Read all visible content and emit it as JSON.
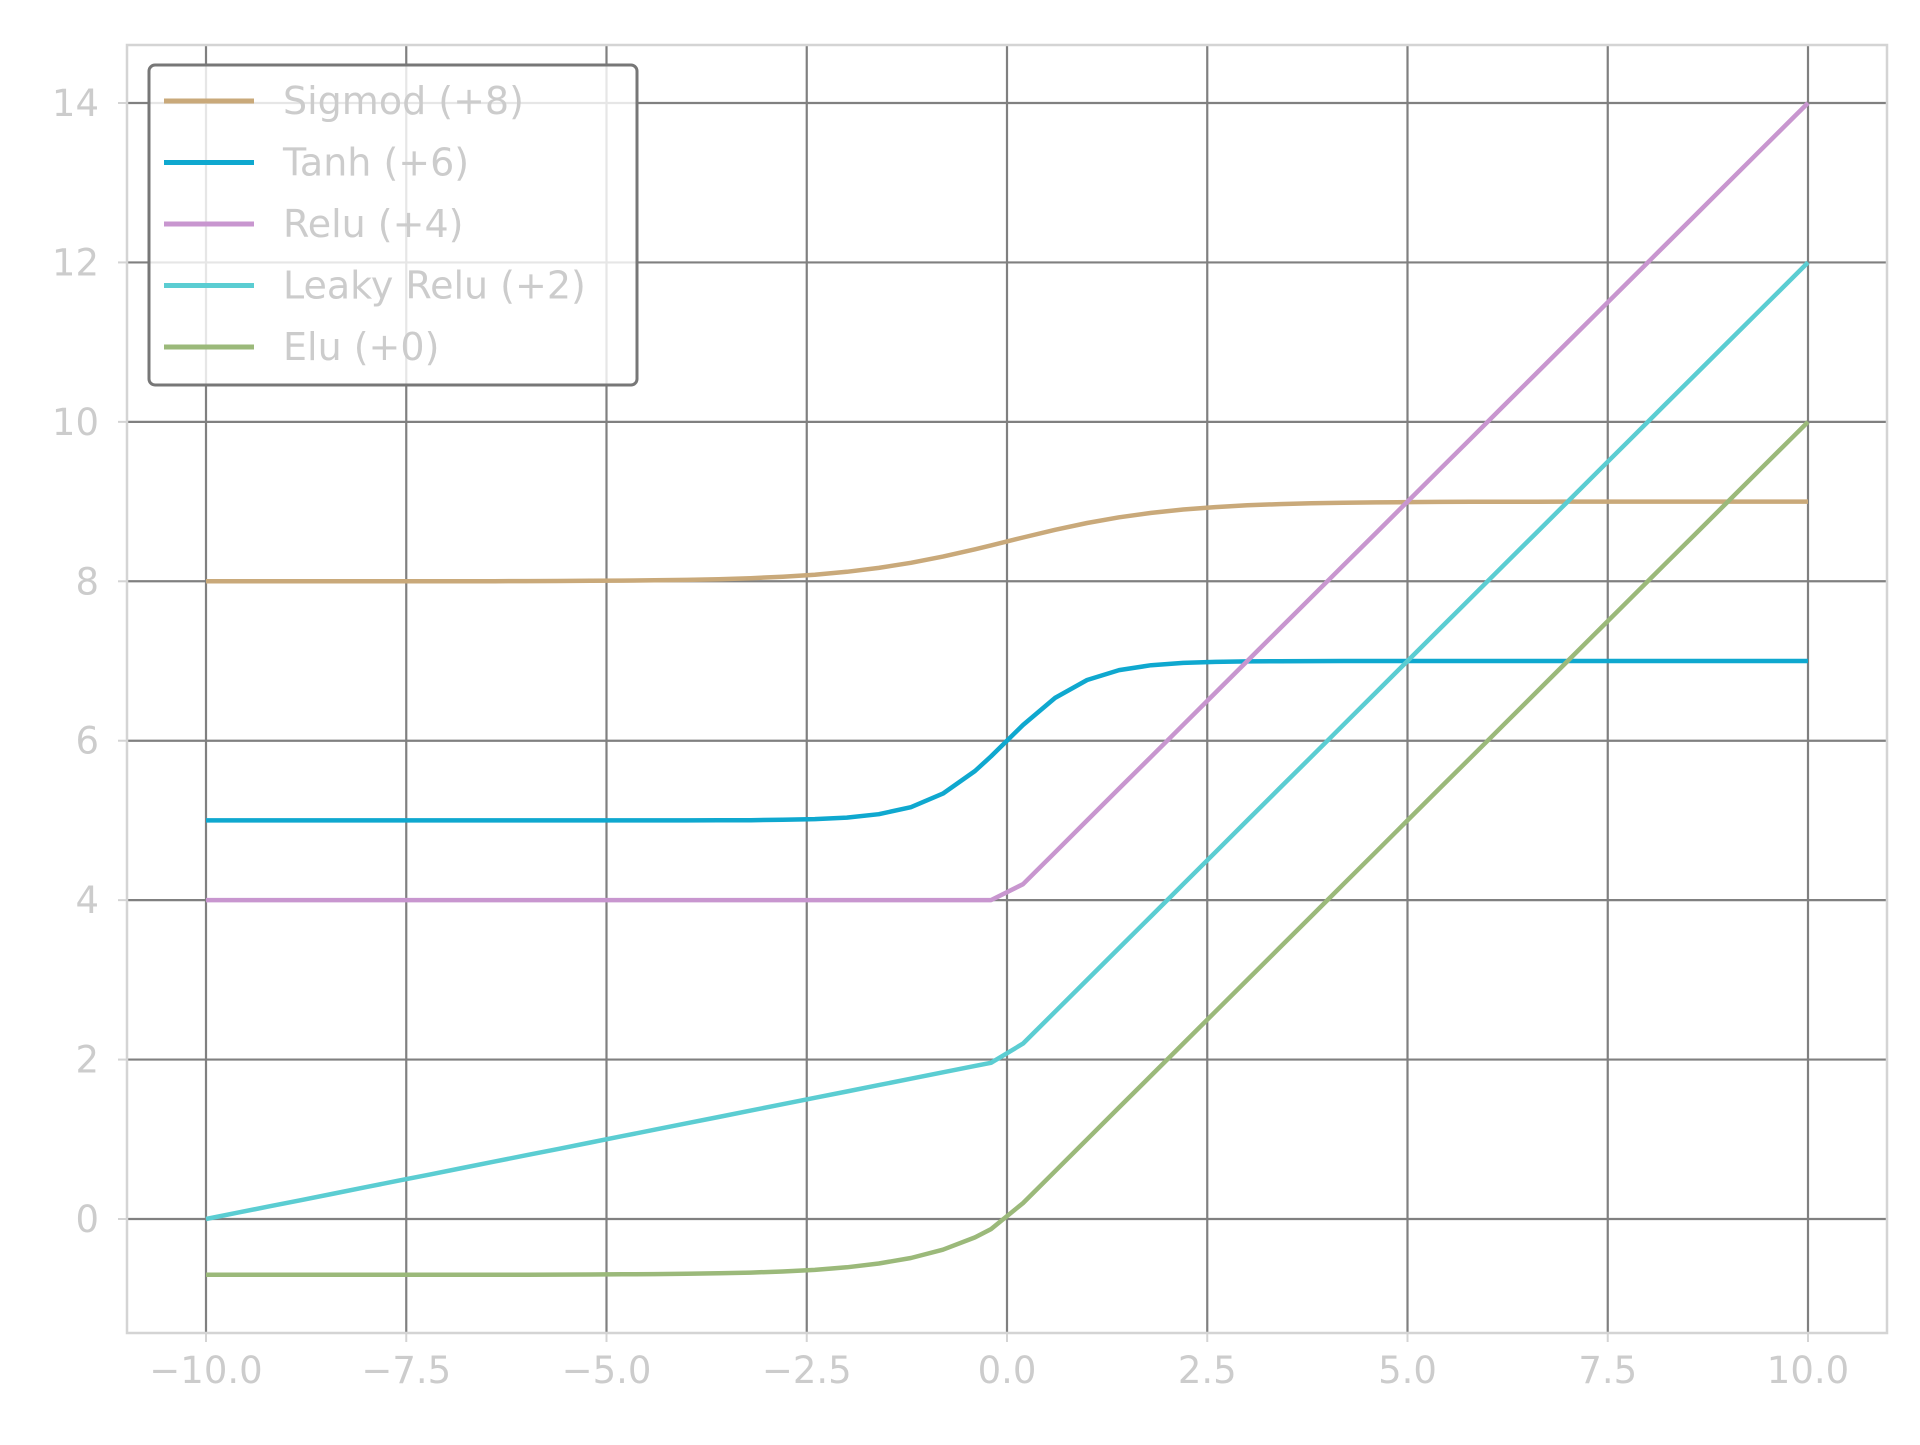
{
  "chart_data": {
    "type": "line",
    "title": "",
    "xlabel": "",
    "ylabel": "",
    "xlim": [
      -11.0,
      11.0
    ],
    "ylim": [
      -1.4,
      14.75
    ],
    "xticks": [
      -10.0,
      -7.5,
      -5.0,
      -2.5,
      0.0,
      2.5,
      5.0,
      7.5,
      10.0
    ],
    "xtick_labels": [
      "−10.0",
      "−7.5",
      "−5.0",
      "−2.5",
      "0.0",
      "2.5",
      "5.0",
      "7.5",
      "10.0"
    ],
    "yticks": [
      0,
      2,
      4,
      6,
      8,
      10,
      12,
      14
    ],
    "ytick_labels": [
      "0",
      "2",
      "4",
      "6",
      "8",
      "10",
      "12",
      "14"
    ],
    "grid": true,
    "legend_position": "top-left",
    "colors": {
      "grid": "#808080",
      "spine": "#d4d4d4",
      "tick_label": "#cccccc",
      "legend_border": "#777777"
    },
    "x": [
      -10.0,
      -9.6,
      -9.2,
      -8.8,
      -8.4,
      -8.0,
      -7.6,
      -7.2,
      -6.8,
      -6.4,
      -6.0,
      -5.6,
      -5.2,
      -4.8,
      -4.4,
      -4.0,
      -3.6,
      -3.2,
      -2.8,
      -2.4,
      -2.0,
      -1.6,
      -1.2,
      -0.8,
      -0.4,
      -0.2,
      0.2,
      0.6,
      1.0,
      1.4,
      1.8,
      2.2,
      2.6,
      3.0,
      3.4,
      3.8,
      4.2,
      4.6,
      5.0,
      5.4,
      5.8,
      6.2,
      6.6,
      7.0,
      7.4,
      7.8,
      8.2,
      8.6,
      9.0,
      9.4,
      9.8,
      10.0
    ],
    "series": [
      {
        "name": "Sigmod (+8)",
        "color": "#c9a97a",
        "values": [
          8.0,
          8.0001,
          8.0001,
          8.0002,
          8.0002,
          8.0003,
          8.0005,
          8.0007,
          8.0011,
          8.0017,
          8.0025,
          8.0037,
          8.0055,
          8.0082,
          8.0121,
          8.018,
          8.0266,
          8.0392,
          8.0573,
          8.0832,
          8.1192,
          8.168,
          8.2315,
          8.31,
          8.4013,
          8.4502,
          8.5498,
          8.6457,
          8.7311,
          8.8022,
          8.8581,
          8.9002,
          8.9309,
          8.9526,
          8.9677,
          8.9781,
          8.9852,
          8.99,
          8.9933,
          8.9955,
          8.997,
          8.998,
          8.9986,
          8.9991,
          8.9994,
          8.9996,
          8.9997,
          8.9998,
          8.9999,
          8.9999,
          8.9999,
          9.0
        ]
      },
      {
        "name": "Tanh (+6)",
        "color": "#0fa8cf",
        "values": [
          5.0,
          5.0,
          5.0,
          5.0,
          5.0,
          5.0,
          5.0,
          5.0,
          5.0,
          5.0,
          5.0,
          5.0,
          5.0,
          5.0001,
          5.0003,
          5.0007,
          5.0015,
          5.0033,
          5.0073,
          5.0164,
          5.036,
          5.0783,
          5.1663,
          5.336,
          5.62,
          5.8026,
          6.1974,
          6.537,
          6.7616,
          6.8854,
          6.9468,
          6.9757,
          6.989,
          6.9951,
          6.9978,
          6.999,
          6.9996,
          6.9998,
          6.9999,
          7.0,
          7.0,
          7.0,
          7.0,
          7.0,
          7.0,
          7.0,
          7.0,
          7.0,
          7.0,
          7.0,
          7.0,
          7.0
        ]
      },
      {
        "name": "Relu (+4)",
        "color": "#c896cf",
        "values": [
          4.0,
          4.0,
          4.0,
          4.0,
          4.0,
          4.0,
          4.0,
          4.0,
          4.0,
          4.0,
          4.0,
          4.0,
          4.0,
          4.0,
          4.0,
          4.0,
          4.0,
          4.0,
          4.0,
          4.0,
          4.0,
          4.0,
          4.0,
          4.0,
          4.0,
          4.0,
          4.2,
          4.6,
          5.0,
          5.4,
          5.8,
          6.2,
          6.6,
          7.0,
          7.4,
          7.8,
          8.2,
          8.6,
          9.0,
          9.4,
          9.8,
          10.2,
          10.6,
          11.0,
          11.4,
          11.8,
          12.2,
          12.6,
          13.0,
          13.4,
          13.8,
          14.0
        ]
      },
      {
        "name": "Leaky Relu (+2)",
        "color": "#5bcdd2",
        "values": [
          0.0,
          0.08,
          0.16,
          0.24,
          0.32,
          0.4,
          0.48,
          0.56,
          0.64,
          0.72,
          0.8,
          0.88,
          0.96,
          1.04,
          1.12,
          1.2,
          1.28,
          1.36,
          1.44,
          1.52,
          1.6,
          1.68,
          1.76,
          1.84,
          1.92,
          1.96,
          2.2,
          2.6,
          3.0,
          3.4,
          3.8,
          4.2,
          4.6,
          5.0,
          5.4,
          5.8,
          6.2,
          6.6,
          7.0,
          7.4,
          7.8,
          8.2,
          8.6,
          9.0,
          9.4,
          9.8,
          10.2,
          10.6,
          11.0,
          11.4,
          11.8,
          12.0
        ]
      },
      {
        "name": "Elu (+0)",
        "color": "#9bb97a",
        "values": [
          -0.7,
          -0.7,
          -0.7,
          -0.7,
          -0.6999,
          -0.6998,
          -0.6997,
          -0.6995,
          -0.6992,
          -0.6988,
          -0.6983,
          -0.6974,
          -0.6961,
          -0.6942,
          -0.6914,
          -0.6872,
          -0.681,
          -0.6718,
          -0.6583,
          -0.6381,
          -0.6053,
          -0.5587,
          -0.4892,
          -0.3855,
          -0.2308,
          -0.1269,
          0.2,
          0.6,
          1.0,
          1.4,
          1.8,
          2.2,
          2.6,
          3.0,
          3.4,
          3.8,
          4.2,
          4.6,
          5.0,
          5.4,
          5.8,
          6.2,
          6.6,
          7.0,
          7.4,
          7.8,
          8.2,
          8.6,
          9.0,
          9.4,
          9.8,
          10.0
        ]
      }
    ]
  }
}
